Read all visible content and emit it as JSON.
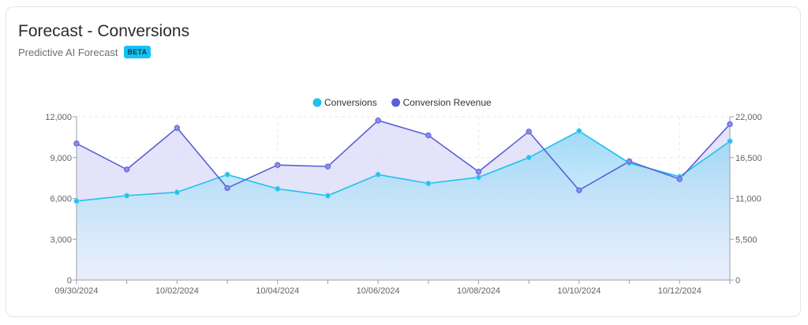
{
  "card": {
    "title": "Forecast - Conversions",
    "subtitle": "Predictive AI Forecast",
    "badge": "BETA"
  },
  "colors": {
    "conversions": "#1ec0ee",
    "conversion_revenue": "#5b5fd6",
    "badge_bg": "#14c3f0"
  },
  "chart_data": {
    "type": "area",
    "title": "",
    "legend_position": "top-center",
    "grid": true,
    "x": [
      "09/30/2024",
      "10/01/2024",
      "10/02/2024",
      "10/03/2024",
      "10/04/2024",
      "10/05/2024",
      "10/06/2024",
      "10/07/2024",
      "10/08/2024",
      "10/09/2024",
      "10/10/2024",
      "10/11/2024",
      "10/12/2024",
      "10/13/2024"
    ],
    "x_tick_labels": [
      "09/30/2024",
      "10/02/2024",
      "10/04/2024",
      "10/06/2024",
      "10/08/2024",
      "10/10/2024",
      "10/12/2024"
    ],
    "y_left": {
      "ylim": [
        0,
        12000
      ],
      "ticks": [
        "0",
        "3,000",
        "6,000",
        "9,000",
        "12,000"
      ]
    },
    "y_right": {
      "ylim": [
        0,
        22000
      ],
      "ticks": [
        "0",
        "5,500",
        "11,000",
        "16,500",
        "22,000"
      ]
    },
    "series": [
      {
        "name": "Conversions",
        "axis": "left",
        "values": [
          5800,
          6200,
          6450,
          7750,
          6700,
          6200,
          7750,
          7100,
          7550,
          9000,
          10950,
          8600,
          7600,
          10200
        ]
      },
      {
        "name": "Conversion Revenue",
        "axis": "right",
        "values": [
          18400,
          14900,
          20500,
          12400,
          15500,
          15300,
          21500,
          19500,
          14600,
          20000,
          12100,
          16000,
          13600,
          21000
        ]
      }
    ]
  }
}
